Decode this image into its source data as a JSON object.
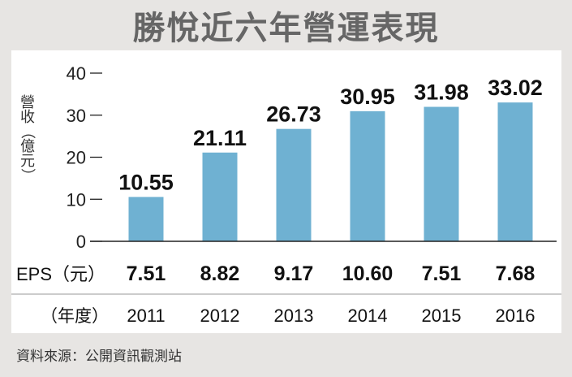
{
  "title": "勝悅近六年營運表現",
  "source_note": "資料來源：公開資訊觀測站",
  "colors": {
    "bar": "#6fb1d2",
    "background": "#e7e5e3",
    "panel": "#ffffff",
    "title": "#666666"
  },
  "eps_label": "EPS（元）",
  "year_label": "（年度）",
  "chart_data": {
    "type": "bar",
    "title": "勝悅近六年營運表現",
    "ylabel": "營收（億元）",
    "xlabel": "（年度）",
    "categories": [
      "2011",
      "2012",
      "2013",
      "2014",
      "2015",
      "2016"
    ],
    "values": [
      10.55,
      21.11,
      26.73,
      30.95,
      31.98,
      33.02
    ],
    "value_labels": [
      "10.55",
      "21.11",
      "26.73",
      "30.95",
      "31.98",
      "33.02"
    ],
    "eps": [
      "7.51",
      "8.82",
      "9.17",
      "10.60",
      "7.51",
      "7.68"
    ],
    "ylim": [
      0,
      40
    ],
    "yticks": [
      "0",
      "10",
      "20",
      "30",
      "40"
    ],
    "grid": false,
    "legend": "none"
  }
}
